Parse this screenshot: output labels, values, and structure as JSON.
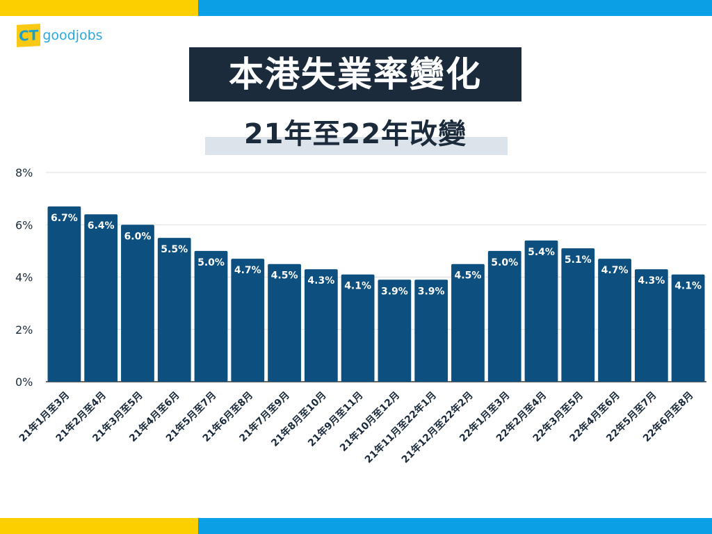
{
  "brand": {
    "logo_text": "CT goodjobs",
    "logo_ct": "CT",
    "logo_name": "goodjobs"
  },
  "header": {
    "title": "本港失業率變化",
    "subtitle": "21年至22年改變"
  },
  "colors": {
    "bar": "#0d4f7e",
    "top_yellow": "#fcd000",
    "top_blue": "#0ba0e6",
    "title_bg": "#1c2b3c"
  },
  "chart_data": {
    "type": "bar",
    "title": "本港失業率變化",
    "subtitle": "21年至22年改變",
    "xlabel": "",
    "ylabel": "",
    "ylim": [
      0,
      8
    ],
    "yticks": [
      0,
      2,
      4,
      6,
      8
    ],
    "ytick_labels": [
      "0%",
      "2%",
      "4%",
      "6%",
      "8%"
    ],
    "grid": true,
    "categories": [
      "21年1月至3月",
      "21年2月至4月",
      "21年3月至5月",
      "21年4月至6月",
      "21年5月至7月",
      "21年6月至8月",
      "21年7月至9月",
      "21年8月至10月",
      "21年9月至11月",
      "21年10月至12月",
      "21年11月至22年1月",
      "21年12月至22年2月",
      "22年1月至3月",
      "22年2月至4月",
      "22年3月至5月",
      "22年4月至6月",
      "22年5月至7月",
      "22年6月至8月"
    ],
    "values": [
      6.7,
      6.4,
      6.0,
      5.5,
      5.0,
      4.7,
      4.5,
      4.3,
      4.1,
      3.9,
      3.9,
      4.5,
      5.0,
      5.4,
      5.1,
      4.7,
      4.3,
      4.1
    ],
    "data_labels": [
      "6.7%",
      "6.4%",
      "6.0%",
      "5.5%",
      "5.0%",
      "4.7%",
      "4.5%",
      "4.3%",
      "4.1%",
      "3.9%",
      "3.9%",
      "4.5%",
      "5.0%",
      "5.4%",
      "5.1%",
      "4.7%",
      "4.3%",
      "4.1%"
    ]
  }
}
